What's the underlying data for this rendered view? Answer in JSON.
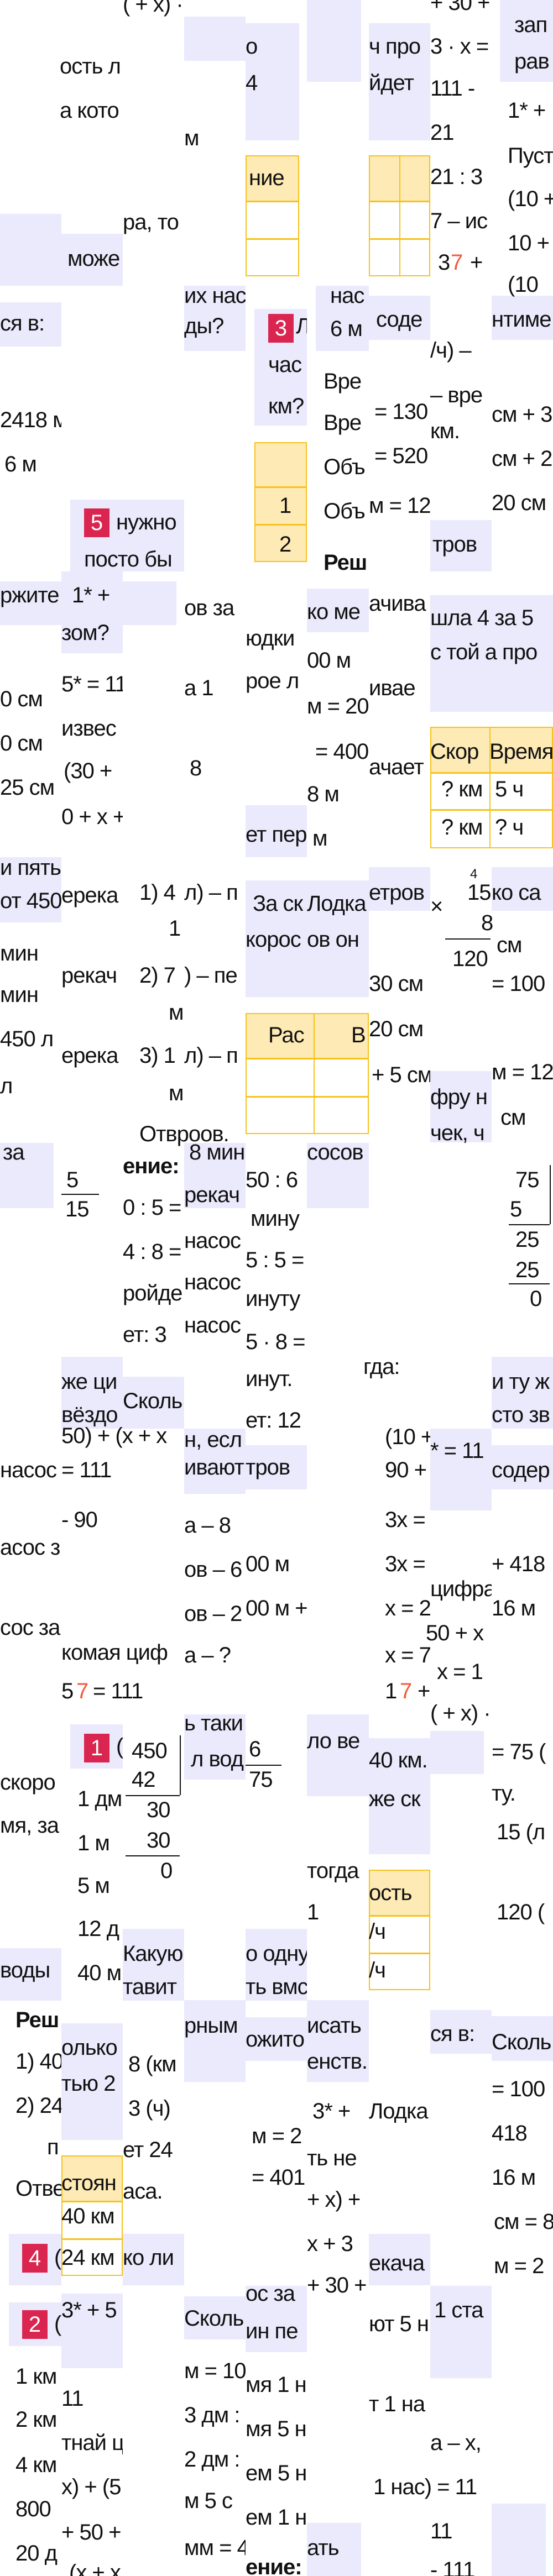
{
  "colors": {
    "tile": "#ebe9fc",
    "table_header": "#fdeab4",
    "table_border": "#f7c21a",
    "badge": "#d9254f",
    "accent_digit": "#f15a3c"
  },
  "badges": [
    "3",
    "5",
    "1",
    "4",
    "2"
  ],
  "fragments": [
    "( + x) ·",
    "о",
    "4",
    "ч про",
    "йдет",
    "+ 30 +",
    "3 · x =",
    "111 -",
    "21",
    "21 : 3",
    "7 – ис",
    "3",
    "7",
    "+",
    "зап",
    "рав",
    "1* +",
    "Пуст",
    "(10 +",
    "10 +",
    "(10",
    "ость л",
    "а кото",
    "м",
    "ние",
    "може",
    "ра, то",
    "их нас",
    "ды?",
    "Л",
    "час",
    "км?",
    "нас",
    "6 м",
    "соде",
    "нтиме",
    "ся в:",
    "2418 м",
    "6 м",
    "Вре",
    "Вре",
    "Объ",
    "Объ",
    "Реш",
    "/ч) –",
    "= 130",
    "– вре",
    "км.",
    "= 520",
    "м = 12",
    "см + 3",
    "см + 2",
    "20 см",
    "1",
    "2",
    "нужно",
    "посто бы",
    "тров",
    "ржите",
    "1* +",
    "зом?",
    "ов за",
    "юдки",
    "ко ме",
    "ачива",
    "шла 4 за 5",
    "с той а про",
    "00 м",
    "0 см",
    "0 см",
    "25 см",
    "5* = 11",
    "извес",
    "(30 +",
    "0 + x +",
    "а 1",
    "8",
    "рое л",
    "ет пер",
    "м = 20",
    "= 400",
    "8 м",
    "м",
    "ивае",
    "ачает",
    "Скор",
    "Время",
    "? км",
    "5 ч",
    "? км",
    "? ч",
    "и пять",
    "от 450",
    "ерека",
    "1) 4",
    "л) – п",
    "1",
    "За ск",
    "короc",
    "Лодка",
    "ов он",
    "етров",
    "×",
    "4",
    "15",
    "8",
    "120",
    "см",
    "ко са",
    "мин",
    "рекач",
    "2) 7",
    ") – пе",
    "30 см",
    "= 100",
    "мин",
    "450 л",
    "л",
    "ерека",
    "3) 1",
    "л) – п",
    "м",
    "м",
    "Рас",
    "В",
    "20 см",
    "+ 5 см",
    "фру н",
    "чек, ч",
    "м = 12",
    "см",
    "Отвроов.",
    "за",
    "5",
    "15",
    "ение:",
    "0 : 5 =",
    "4 : 8 =",
    "ройде",
    "8 мин",
    "рекач",
    "50 : 6",
    "мину",
    "5 : 5 =",
    "инуту",
    "сосов",
    "насос",
    "насос",
    "насос",
    "75",
    "5",
    "25",
    "25",
    "0",
    "ет: 3",
    "5 · 8 =",
    "инут.",
    "ет: 12",
    "гда:",
    "же ци",
    "вёздо",
    "Сколь",
    "и ту ж",
    "сто зв",
    "50) + (x + x",
    "н, есл",
    "ивают",
    "тров",
    "(10 +",
    "90 +",
    "3x =",
    "3x =",
    "x = 2",
    "x = 7",
    "* = 11",
    "содер",
    "насос",
    "асос з",
    "сос за",
    "= 111",
    "- 90",
    "а – 8",
    "ов – 6",
    "ов – 2",
    "00 м",
    "00 м +",
    "+ 418",
    "16 м",
    "цифра",
    "50 + x",
    "комая циф",
    "а – ?",
    "5",
    "7",
    "= 111",
    "1",
    "7",
    "+",
    "x = 1",
    "( + x) ·",
    "(",
    "450",
    "42",
    "30",
    "30",
    "0",
    "ь таки",
    "л вод",
    "6",
    "75",
    "ло ве",
    "40 км.",
    "же ск",
    "= 75 (",
    "ту.",
    "15 (л",
    "120 (",
    "скоро",
    "мя, за",
    "1 дм",
    "1 м",
    "5 м",
    "12 д",
    "40 м",
    "тогда",
    "1",
    "ость",
    "/ч",
    "/ч",
    "воды",
    "Какую",
    "тавит",
    "о одну",
    "ть вмс",
    "Реш",
    "1) 40",
    "2) 24",
    "п",
    "Отве",
    "олько",
    "тью 2",
    "8 (км",
    "3 (ч)",
    "ет 24",
    "аса.",
    "рным",
    "ожито",
    "исать",
    "енств.",
    "3* +",
    "Лодка",
    "м = 2",
    "ть не",
    "= 401",
    "+ x) +",
    "x + 3",
    "+ 30 +",
    "ся в:",
    "Сколь",
    "= 100",
    "418",
    "16 м",
    "см = 8",
    "м = 2",
    "стоян",
    "40 км",
    "24 км",
    "(",
    "ко ли",
    "екача",
    "ос за",
    "1 ста",
    "(",
    "3* + 5",
    "Сколь",
    "ин пе",
    "ют 5 н",
    "1 км",
    "2 км",
    "4 км",
    "800",
    "20 д",
    "11",
    "тнай ц",
    "x) + (5",
    "+ 50 +",
    "(x + x",
    "м = 10",
    "3 дм :",
    "2 дм :",
    "м 5 с",
    "мм = 4",
    "мя 1 н",
    "мя 5 н",
    "ем 5 н",
    "ем 1 н",
    "ение:",
    "т 1 на",
    "а – x,",
    "1 нас) = 11",
    "11",
    "- 111",
    "ать"
  ]
}
